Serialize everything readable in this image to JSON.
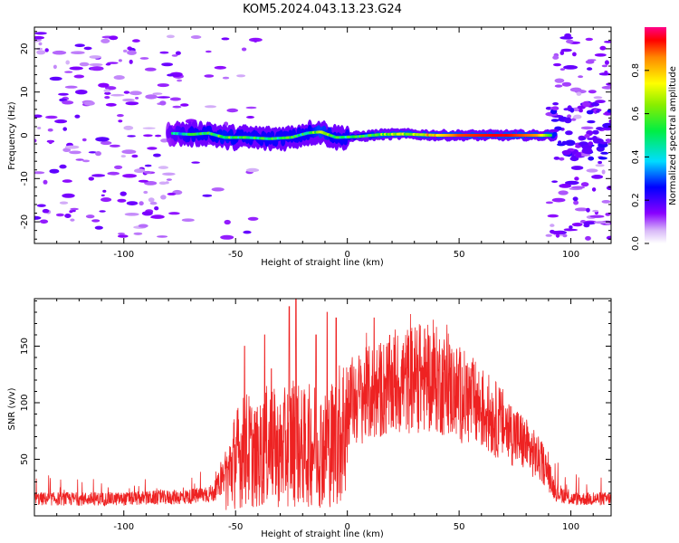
{
  "title": "KOM5.2024.043.13.23.G24",
  "chart_data": [
    {
      "type": "heatmap",
      "xlabel": "Height of straight line (km)",
      "ylabel": "Frequency (Hz)",
      "xlim": [
        -140,
        118
      ],
      "ylim": [
        -25,
        25
      ],
      "xticks": [
        -100,
        -50,
        0,
        50,
        100
      ],
      "yticks": [
        -20,
        -10,
        0,
        10,
        20
      ],
      "colorbar": {
        "label": "Normalized spectral amplitude",
        "range": [
          0.0,
          1.0
        ],
        "ticks": [
          0.0,
          0.2,
          0.4,
          0.6,
          0.8
        ]
      },
      "track": {
        "description_points": [
          {
            "x": -80,
            "y": 0.5,
            "amp": 0.3
          },
          {
            "x": -70,
            "y": 0.2,
            "amp": 0.45
          },
          {
            "x": -62,
            "y": 0.5,
            "amp": 0.45
          },
          {
            "x": -55,
            "y": -0.5,
            "amp": 0.5
          },
          {
            "x": -45,
            "y": -0.5,
            "amp": 0.45
          },
          {
            "x": -35,
            "y": -0.8,
            "amp": 0.45
          },
          {
            "x": -25,
            "y": -0.5,
            "amp": 0.45
          },
          {
            "x": -18,
            "y": 0.5,
            "amp": 0.45
          },
          {
            "x": -12,
            "y": 0.8,
            "amp": 0.55
          },
          {
            "x": -5,
            "y": -0.5,
            "amp": 0.45
          },
          {
            "x": 5,
            "y": -0.3,
            "amp": 0.45
          },
          {
            "x": 15,
            "y": 0.2,
            "amp": 0.55
          },
          {
            "x": 25,
            "y": 0.3,
            "amp": 0.6
          },
          {
            "x": 40,
            "y": 0.0,
            "amp": 0.75
          },
          {
            "x": 50,
            "y": 0.0,
            "amp": 0.9
          },
          {
            "x": 70,
            "y": 0.0,
            "amp": 0.95
          },
          {
            "x": 85,
            "y": 0.0,
            "amp": 0.85
          },
          {
            "x": 92,
            "y": 0.0,
            "amp": 0.5
          }
        ]
      }
    },
    {
      "type": "line",
      "xlabel": "Height of straight line (km)",
      "ylabel": "SNR (v/v)",
      "xlim": [
        -140,
        118
      ],
      "ylim": [
        0,
        192
      ],
      "xticks": [
        -100,
        -50,
        0,
        50,
        100
      ],
      "yticks": [
        50,
        100,
        150
      ],
      "color": "#ee2222",
      "series": [
        {
          "envelope": [
            {
              "x": -140,
              "y": 15
            },
            {
              "x": -100,
              "y": 15
            },
            {
              "x": -70,
              "y": 17
            },
            {
              "x": -60,
              "y": 20
            },
            {
              "x": -55,
              "y": 35
            },
            {
              "x": -50,
              "y": 60
            },
            {
              "x": -45,
              "y": 70
            },
            {
              "x": -40,
              "y": 60
            },
            {
              "x": -35,
              "y": 75
            },
            {
              "x": -30,
              "y": 65
            },
            {
              "x": -25,
              "y": 80
            },
            {
              "x": -20,
              "y": 70
            },
            {
              "x": -15,
              "y": 75
            },
            {
              "x": -10,
              "y": 70
            },
            {
              "x": -5,
              "y": 80
            },
            {
              "x": 0,
              "y": 100
            },
            {
              "x": 10,
              "y": 108
            },
            {
              "x": 20,
              "y": 115
            },
            {
              "x": 30,
              "y": 122
            },
            {
              "x": 40,
              "y": 120
            },
            {
              "x": 50,
              "y": 108
            },
            {
              "x": 60,
              "y": 95
            },
            {
              "x": 70,
              "y": 80
            },
            {
              "x": 80,
              "y": 62
            },
            {
              "x": 88,
              "y": 45
            },
            {
              "x": 93,
              "y": 22
            },
            {
              "x": 100,
              "y": 15
            },
            {
              "x": 118,
              "y": 15
            }
          ],
          "peaks": [
            {
              "x": -46,
              "y": 150
            },
            {
              "x": -37,
              "y": 160
            },
            {
              "x": -34,
              "y": 130
            },
            {
              "x": -26,
              "y": 185
            },
            {
              "x": -23,
              "y": 192
            },
            {
              "x": -14,
              "y": 160
            },
            {
              "x": -9,
              "y": 180
            },
            {
              "x": -5,
              "y": 175
            },
            {
              "x": 12,
              "y": 175
            },
            {
              "x": 30,
              "y": 148
            }
          ]
        }
      ]
    }
  ]
}
